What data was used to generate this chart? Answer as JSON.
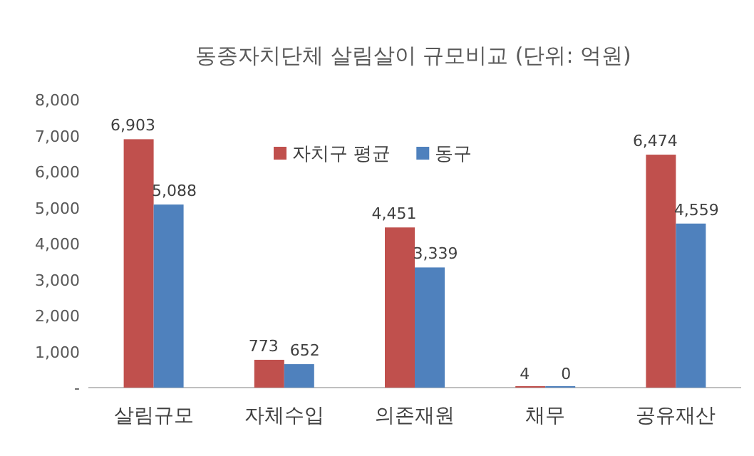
{
  "chart_data": {
    "type": "bar",
    "title": "동종자치단체 살림살이 규모비교 (단위: 억원)",
    "categories": [
      "살림규모",
      "자체수입",
      "의존재원",
      "채무",
      "공유재산"
    ],
    "series": [
      {
        "name": "자치구 평균",
        "color": "#c0504d",
        "values": [
          6903,
          773,
          4451,
          4,
          6474
        ],
        "value_labels": [
          "6,903",
          "773",
          "4,451",
          "4",
          "6,474"
        ]
      },
      {
        "name": "동구",
        "color": "#4f81bd",
        "values": [
          5088,
          652,
          3339,
          0,
          4559
        ],
        "value_labels": [
          "5,088",
          "652",
          "3,339",
          "0",
          "4,559"
        ]
      }
    ],
    "ylim": [
      0,
      8000
    ],
    "yticks": [
      {
        "value": 0,
        "label": "-"
      },
      {
        "value": 1000,
        "label": "1,000"
      },
      {
        "value": 2000,
        "label": "2,000"
      },
      {
        "value": 3000,
        "label": "3,000"
      },
      {
        "value": 4000,
        "label": "4,000"
      },
      {
        "value": 5000,
        "label": "5,000"
      },
      {
        "value": 6000,
        "label": "6,000"
      },
      {
        "value": 7000,
        "label": "7,000"
      },
      {
        "value": 8000,
        "label": "8,000"
      }
    ],
    "grid": false,
    "legend": "top"
  }
}
